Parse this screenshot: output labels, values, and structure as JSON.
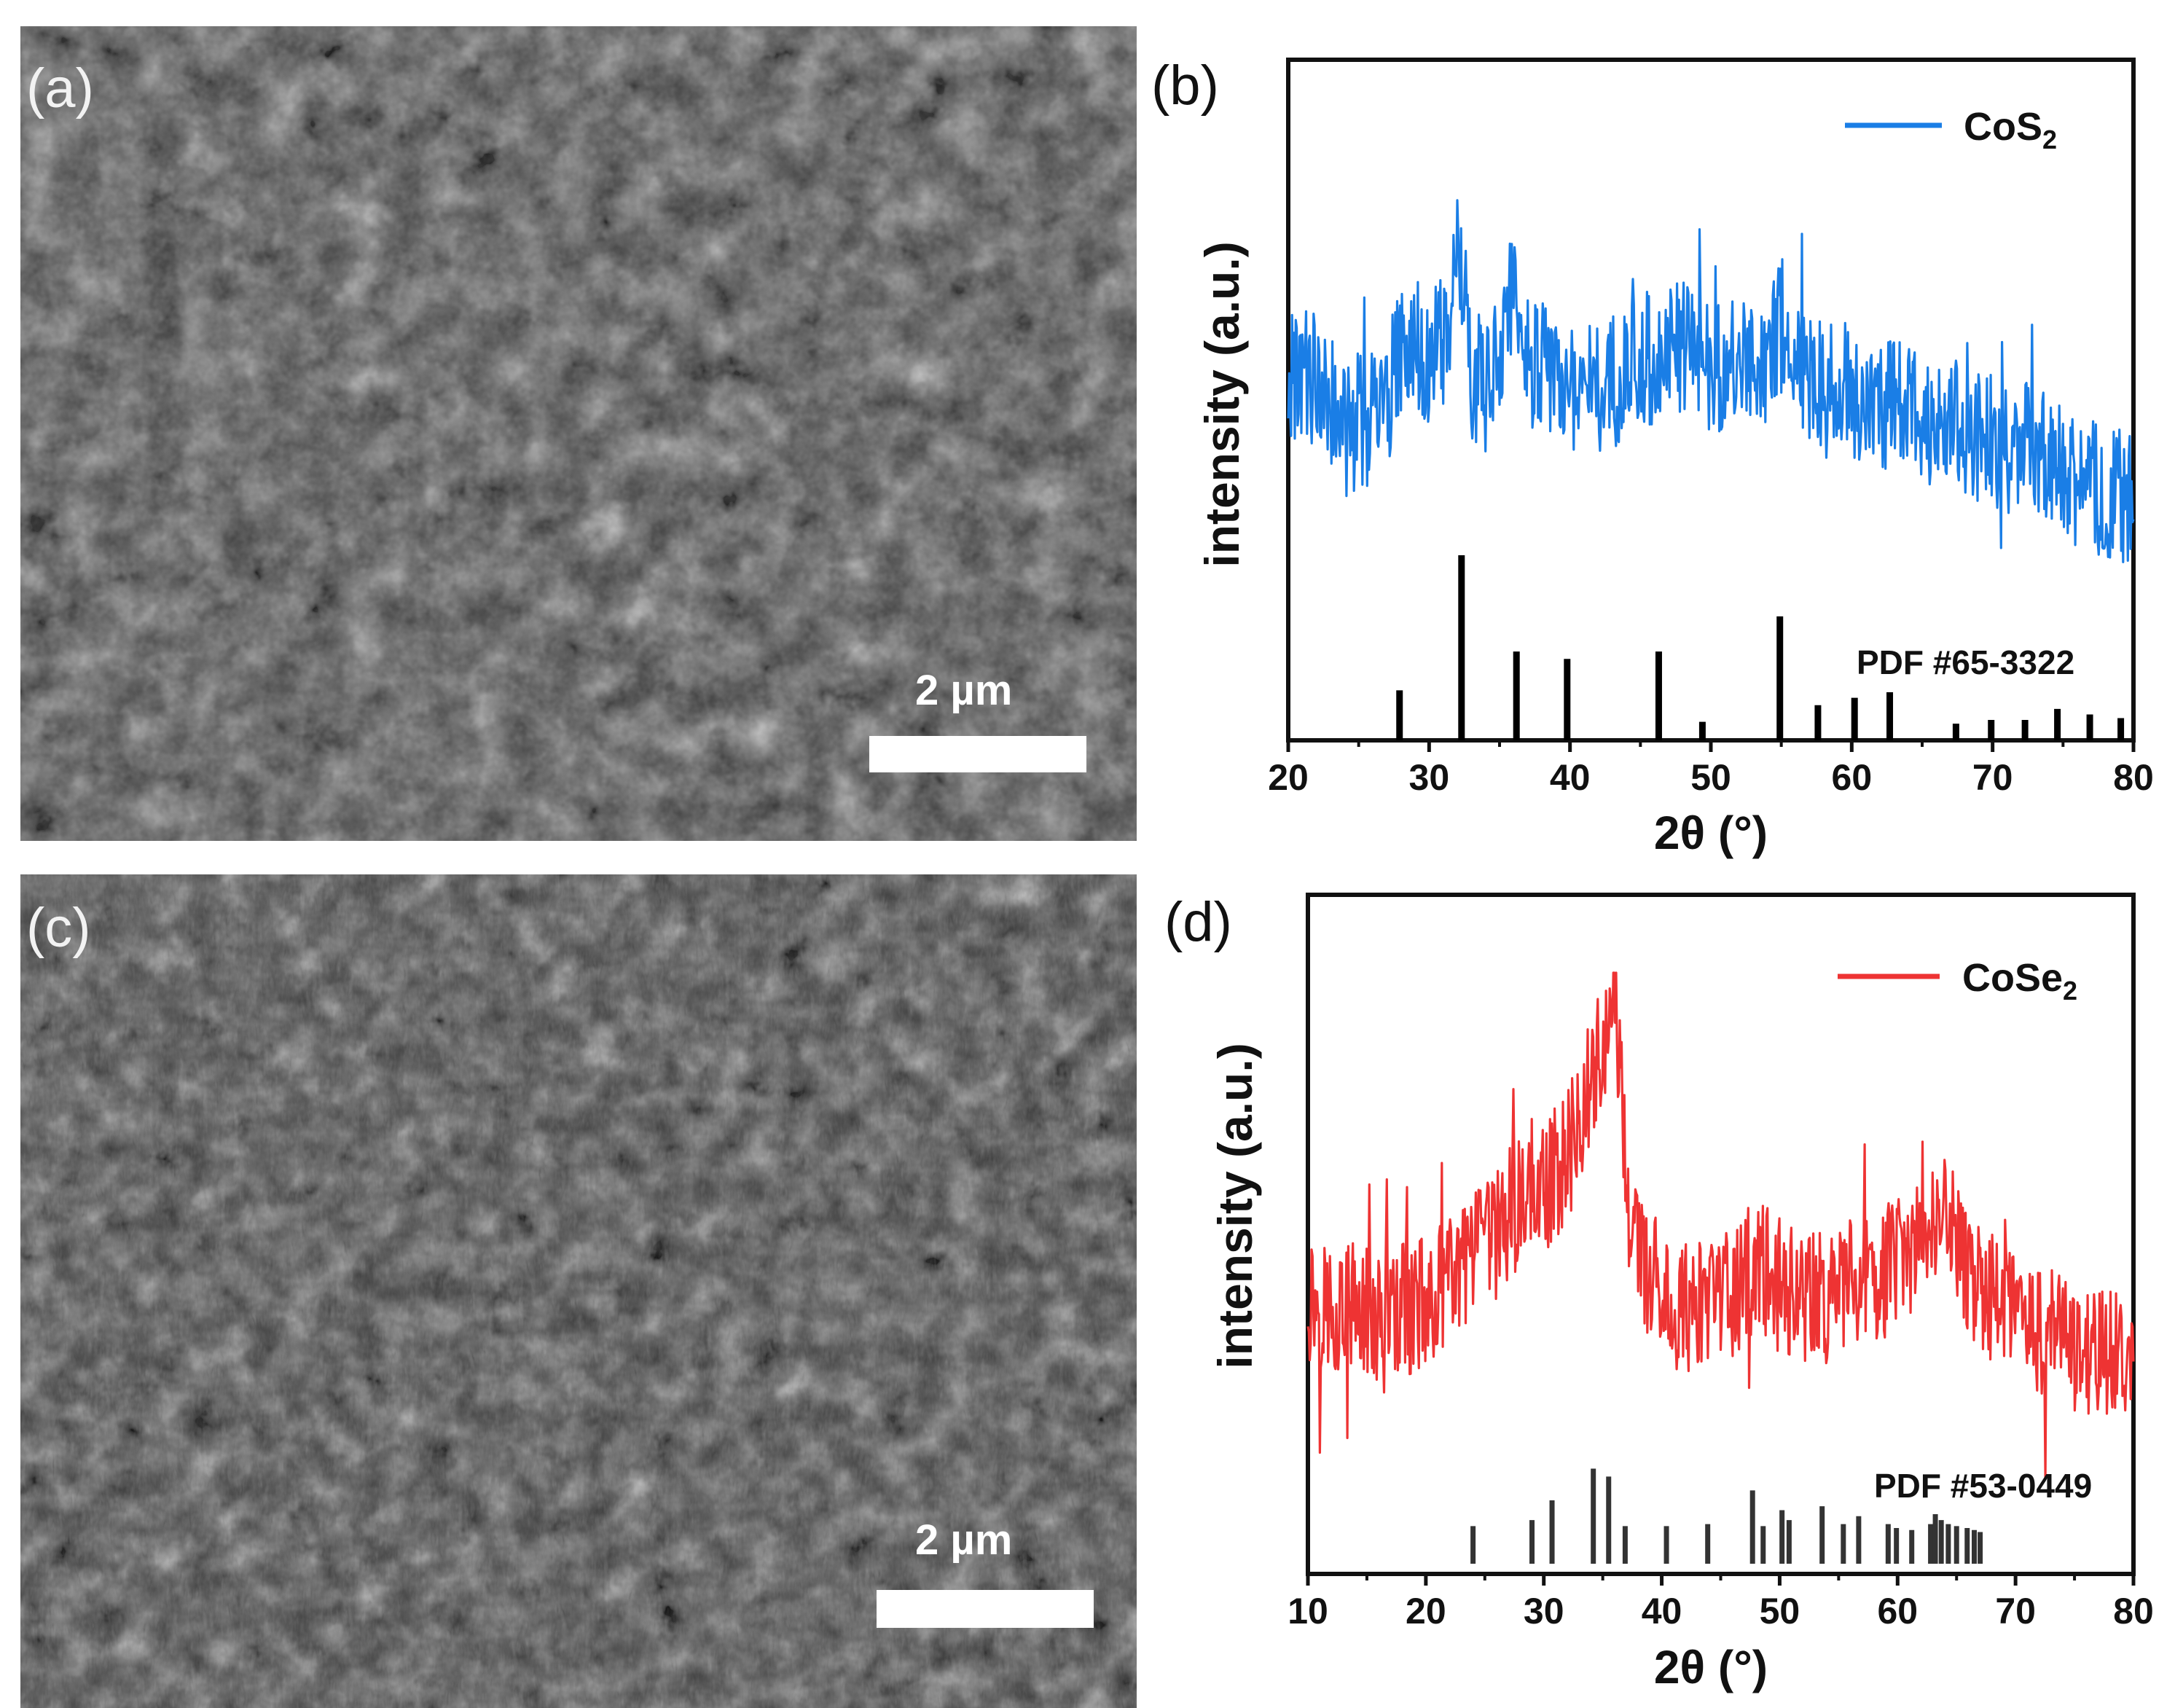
{
  "panels": {
    "a": {
      "label": "(a)",
      "scale_text": "2 µm"
    },
    "b": {
      "label": "(b)"
    },
    "c": {
      "label": "(c)",
      "scale_text": "2 µm"
    },
    "d": {
      "label": "(d)"
    }
  },
  "chart_data": [
    {
      "id": "b",
      "type": "line",
      "xlabel": "2θ (°)",
      "ylabel": "intensity (a.u.)",
      "xlim": [
        20,
        80
      ],
      "xticks": [
        20,
        30,
        40,
        50,
        60,
        70,
        80
      ],
      "ylim": [
        0,
        1
      ],
      "series": [
        {
          "name": "CoS2",
          "legend_main": "CoS",
          "legend_sub": "2",
          "color": "#1a7ee6",
          "x": [
            20,
            22,
            24,
            26,
            27,
            28,
            29,
            30,
            31,
            31.5,
            32,
            32.4,
            33,
            34,
            35,
            36,
            36.5,
            37,
            38,
            40,
            42,
            44,
            46,
            48,
            50,
            52,
            54,
            55,
            56,
            58,
            60,
            62,
            64,
            66,
            68,
            70,
            72,
            74,
            76,
            78,
            80
          ],
          "y": [
            0.53,
            0.55,
            0.42,
            0.45,
            0.5,
            0.6,
            0.63,
            0.58,
            0.62,
            0.72,
            0.8,
            0.75,
            0.55,
            0.52,
            0.62,
            0.76,
            0.68,
            0.6,
            0.56,
            0.53,
            0.52,
            0.56,
            0.6,
            0.62,
            0.58,
            0.56,
            0.6,
            0.65,
            0.58,
            0.52,
            0.5,
            0.49,
            0.47,
            0.45,
            0.43,
            0.4,
            0.38,
            0.35,
            0.3,
            0.28,
            0.26
          ]
        }
      ],
      "reference": {
        "label": "PDF #65-3322",
        "peaks": [
          {
            "x": 27.9,
            "h": 0.27
          },
          {
            "x": 32.3,
            "h": 1.0
          },
          {
            "x": 36.2,
            "h": 0.48
          },
          {
            "x": 39.8,
            "h": 0.44
          },
          {
            "x": 46.3,
            "h": 0.48
          },
          {
            "x": 49.4,
            "h": 0.1
          },
          {
            "x": 54.9,
            "h": 0.67
          },
          {
            "x": 57.6,
            "h": 0.19
          },
          {
            "x": 60.2,
            "h": 0.23
          },
          {
            "x": 62.7,
            "h": 0.26
          },
          {
            "x": 67.4,
            "h": 0.09
          },
          {
            "x": 69.9,
            "h": 0.11
          },
          {
            "x": 72.3,
            "h": 0.11
          },
          {
            "x": 74.6,
            "h": 0.17
          },
          {
            "x": 76.9,
            "h": 0.14
          },
          {
            "x": 79.1,
            "h": 0.12
          }
        ]
      }
    },
    {
      "id": "d",
      "type": "line",
      "xlabel": "2θ (°)",
      "ylabel": "intensity (a.u.)",
      "xlim": [
        10,
        80
      ],
      "xticks": [
        10,
        20,
        30,
        40,
        50,
        60,
        70,
        80
      ],
      "ylim": [
        0,
        1
      ],
      "series": [
        {
          "name": "CoSe2",
          "legend_main": "CoSe",
          "legend_sub": "2",
          "color": "#ee3333",
          "x": [
            10,
            12,
            14,
            16,
            18,
            20,
            22,
            24,
            26,
            28,
            29,
            30,
            31,
            32,
            33,
            34,
            34.5,
            35,
            35.5,
            36,
            36.5,
            37,
            38,
            40,
            42,
            44,
            46,
            48,
            50,
            52,
            54,
            56,
            58,
            60,
            62,
            63.5,
            65,
            66,
            68,
            70,
            72,
            74,
            76,
            78,
            80
          ],
          "y": [
            0.38,
            0.36,
            0.35,
            0.34,
            0.35,
            0.37,
            0.4,
            0.45,
            0.5,
            0.56,
            0.6,
            0.58,
            0.62,
            0.65,
            0.72,
            0.8,
            0.85,
            0.82,
            0.9,
            0.98,
            0.8,
            0.58,
            0.46,
            0.38,
            0.36,
            0.35,
            0.38,
            0.44,
            0.4,
            0.37,
            0.38,
            0.4,
            0.42,
            0.44,
            0.48,
            0.54,
            0.48,
            0.42,
            0.38,
            0.34,
            0.32,
            0.3,
            0.28,
            0.27,
            0.26
          ]
        }
      ],
      "reference": {
        "label": "PDF #53-0449",
        "peaks": [
          {
            "x": 24.0,
            "h": 0.38
          },
          {
            "x": 29.0,
            "h": 0.44
          },
          {
            "x": 30.7,
            "h": 0.64
          },
          {
            "x": 34.2,
            "h": 0.96
          },
          {
            "x": 35.5,
            "h": 0.88
          },
          {
            "x": 36.9,
            "h": 0.38
          },
          {
            "x": 40.4,
            "h": 0.38
          },
          {
            "x": 43.9,
            "h": 0.4
          },
          {
            "x": 47.7,
            "h": 0.74
          },
          {
            "x": 48.6,
            "h": 0.38
          },
          {
            "x": 50.2,
            "h": 0.54
          },
          {
            "x": 50.8,
            "h": 0.44
          },
          {
            "x": 53.6,
            "h": 0.58
          },
          {
            "x": 55.4,
            "h": 0.4
          },
          {
            "x": 56.7,
            "h": 0.48
          },
          {
            "x": 59.2,
            "h": 0.4
          },
          {
            "x": 59.9,
            "h": 0.36
          },
          {
            "x": 61.2,
            "h": 0.34
          },
          {
            "x": 62.8,
            "h": 0.4
          },
          {
            "x": 63.2,
            "h": 0.5
          },
          {
            "x": 63.7,
            "h": 0.44
          },
          {
            "x": 64.3,
            "h": 0.4
          },
          {
            "x": 65.0,
            "h": 0.38
          },
          {
            "x": 65.9,
            "h": 0.36
          },
          {
            "x": 66.5,
            "h": 0.34
          },
          {
            "x": 67.0,
            "h": 0.32
          }
        ]
      }
    }
  ]
}
